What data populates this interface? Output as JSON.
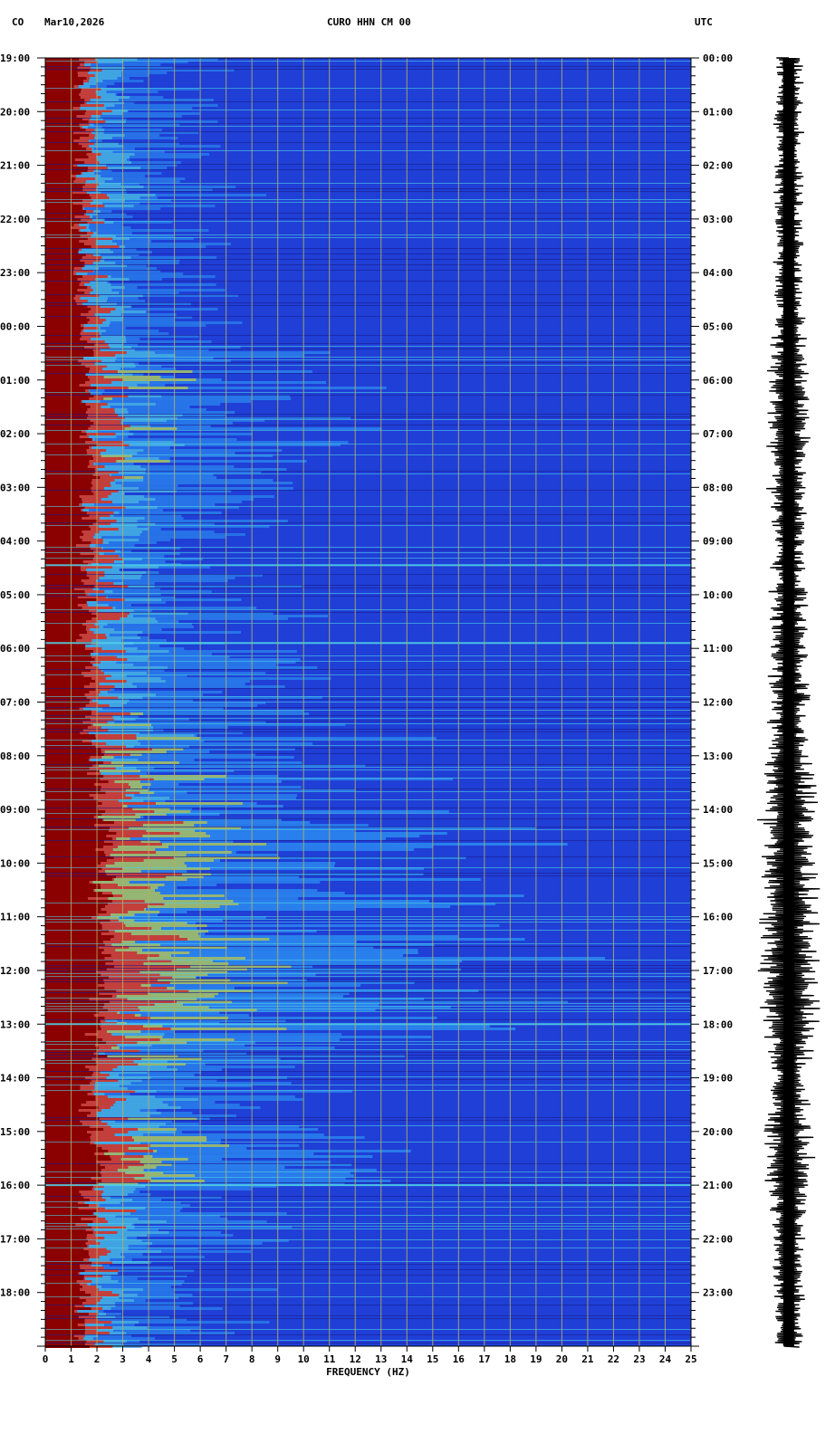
{
  "header": {
    "network": "CO",
    "date": "Mar10,2026",
    "station": "CURO HHN CM 00",
    "timezone": "UTC"
  },
  "chart_data": {
    "type": "heatmap",
    "title": "CURO HHN CM 00",
    "xlabel": "FREQUENCY (HZ)",
    "xlim": [
      0,
      25
    ],
    "x_ticks": [
      "0",
      "1",
      "2",
      "3",
      "4",
      "5",
      "6",
      "7",
      "8",
      "9",
      "10",
      "11",
      "12",
      "13",
      "14",
      "15",
      "16",
      "17",
      "18",
      "19",
      "20",
      "21",
      "22",
      "23",
      "24",
      "25"
    ],
    "y_left_ticks": [
      "19:00",
      "20:00",
      "21:00",
      "22:00",
      "23:00",
      "00:00",
      "01:00",
      "02:00",
      "03:00",
      "04:00",
      "05:00",
      "06:00",
      "07:00",
      "08:00",
      "09:00",
      "10:00",
      "11:00",
      "12:00",
      "13:00",
      "14:00",
      "15:00",
      "16:00",
      "17:00",
      "18:00"
    ],
    "y_right_ticks": [
      "00:00",
      "01:00",
      "02:00",
      "03:00",
      "04:00",
      "05:00",
      "06:00",
      "07:00",
      "08:00",
      "09:00",
      "10:00",
      "11:00",
      "12:00",
      "13:00",
      "14:00",
      "15:00",
      "16:00",
      "17:00",
      "18:00",
      "19:00",
      "20:00",
      "21:00",
      "22:00",
      "23:00"
    ],
    "y_hours": 24,
    "grid": true,
    "colormap": [
      "#1a1a8c",
      "#1f3fd6",
      "#2b8cf0",
      "#4fd0e8",
      "#c8e84a",
      "#f0c020",
      "#e04020",
      "#8b0000"
    ],
    "activity_profile": [
      {
        "hour": 0,
        "level": 0.3
      },
      {
        "hour": 5,
        "level": 0.3
      },
      {
        "hour": 6,
        "level": 0.55
      },
      {
        "hour": 8,
        "level": 0.5
      },
      {
        "hour": 9,
        "level": 0.4
      },
      {
        "hour": 11,
        "level": 0.45
      },
      {
        "hour": 13,
        "level": 0.55
      },
      {
        "hour": 14,
        "level": 0.8
      },
      {
        "hour": 15,
        "level": 0.85
      },
      {
        "hour": 17,
        "level": 0.9
      },
      {
        "hour": 18,
        "level": 0.8
      },
      {
        "hour": 19,
        "level": 0.4
      },
      {
        "hour": 20,
        "level": 0.6
      },
      {
        "hour": 20.7,
        "level": 0.75
      },
      {
        "hour": 21,
        "level": 0.45
      },
      {
        "hour": 24,
        "level": 0.3
      }
    ],
    "bright_lines_hours": [
      9.45,
      10.9,
      18.0,
      21.0
    ],
    "seismogram_panel": true
  }
}
